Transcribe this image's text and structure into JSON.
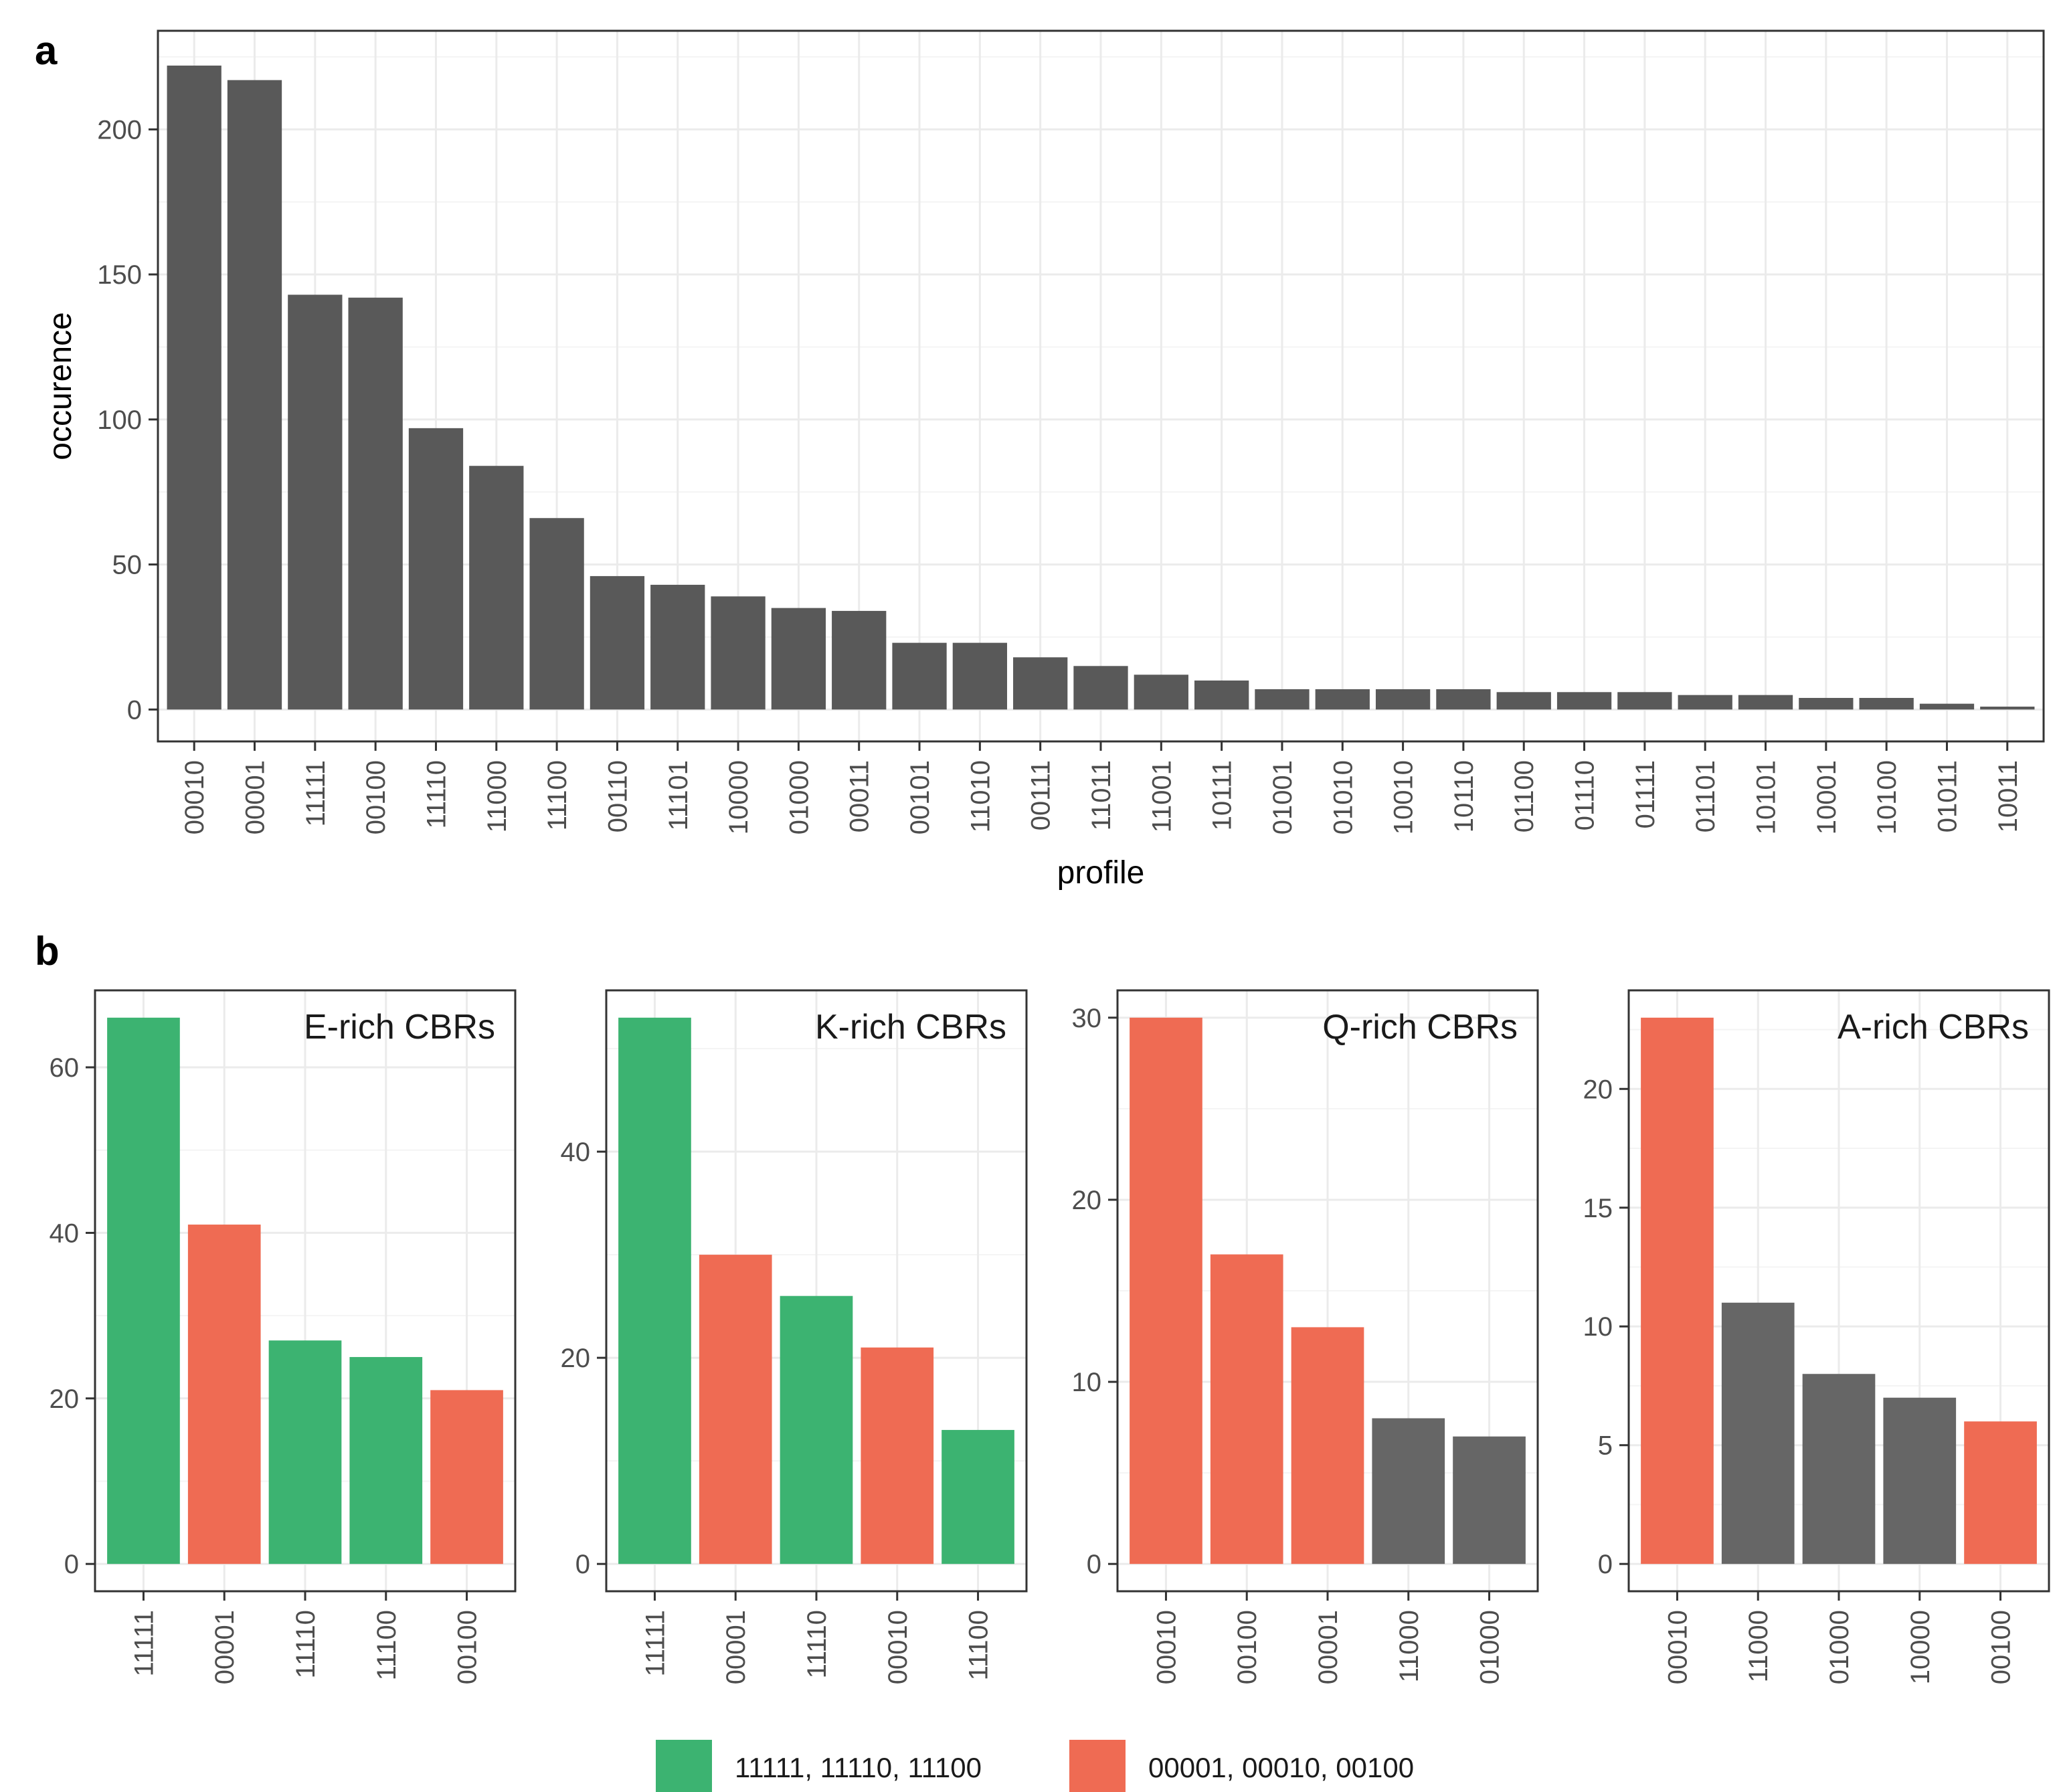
{
  "chart_data": [
    {
      "id": "a",
      "panel_label": "a",
      "type": "bar",
      "xlabel": "profile",
      "ylabel": "occurence",
      "ylim": [
        -11,
        234
      ],
      "yticks": [
        0,
        50,
        100,
        150,
        200
      ],
      "categories": [
        "00010",
        "00001",
        "11111",
        "00100",
        "11110",
        "11000",
        "11100",
        "00110",
        "11101",
        "10000",
        "01000",
        "00011",
        "00101",
        "11010",
        "00111",
        "11011",
        "11001",
        "10111",
        "01001",
        "01010",
        "10010",
        "10110",
        "01100",
        "01110",
        "01111",
        "01101",
        "10101",
        "10001",
        "10100",
        "01011",
        "10011"
      ],
      "values": [
        222,
        217,
        143,
        142,
        97,
        84,
        66,
        46,
        43,
        39,
        35,
        34,
        23,
        23,
        18,
        15,
        12,
        10,
        7,
        7,
        7,
        7,
        6,
        6,
        6,
        5,
        5,
        4,
        4,
        2,
        1
      ],
      "bar_color": "#595959"
    },
    {
      "id": "b",
      "panel_label": "b",
      "type": "bar",
      "facets": [
        {
          "title": "E-rich CBRs",
          "categories": [
            "11111",
            "00001",
            "11110",
            "11100",
            "00100"
          ],
          "values": [
            66,
            41,
            27,
            25,
            21
          ],
          "groups": [
            "green",
            "red",
            "green",
            "green",
            "red"
          ],
          "ylim": [
            -3.3,
            69.3
          ],
          "yticks": [
            0,
            20,
            40,
            60
          ]
        },
        {
          "title": "K-rich CBRs",
          "categories": [
            "11111",
            "00001",
            "11110",
            "00010",
            "11100"
          ],
          "values": [
            53,
            30,
            26,
            21,
            13
          ],
          "groups": [
            "green",
            "red",
            "green",
            "red",
            "green"
          ],
          "ylim": [
            -2.65,
            55.65
          ],
          "yticks": [
            0,
            20,
            40
          ]
        },
        {
          "title": "Q-rich CBRs",
          "categories": [
            "00010",
            "00100",
            "00001",
            "11000",
            "01000"
          ],
          "values": [
            30,
            17,
            13,
            8,
            7
          ],
          "groups": [
            "red",
            "red",
            "red",
            "grey",
            "grey"
          ],
          "ylim": [
            -1.5,
            31.5
          ],
          "yticks": [
            0,
            10,
            20,
            30
          ]
        },
        {
          "title": "A-rich CBRs",
          "categories": [
            "00010",
            "11000",
            "01000",
            "10000",
            "00100"
          ],
          "values": [
            23,
            11,
            8,
            7,
            6
          ],
          "groups": [
            "red",
            "grey",
            "grey",
            "grey",
            "red"
          ],
          "ylim": [
            -1.15,
            24.15
          ],
          "yticks": [
            0,
            5,
            10,
            15,
            20
          ]
        }
      ],
      "legend": [
        {
          "label": "11111, 11110, 11100",
          "color": "#3cb371"
        },
        {
          "label": "00001, 00010, 00100",
          "color": "#ef6b53"
        }
      ],
      "group_colors": {
        "green": "#3cb371",
        "red": "#ef6b53",
        "grey": "#666666"
      }
    }
  ]
}
